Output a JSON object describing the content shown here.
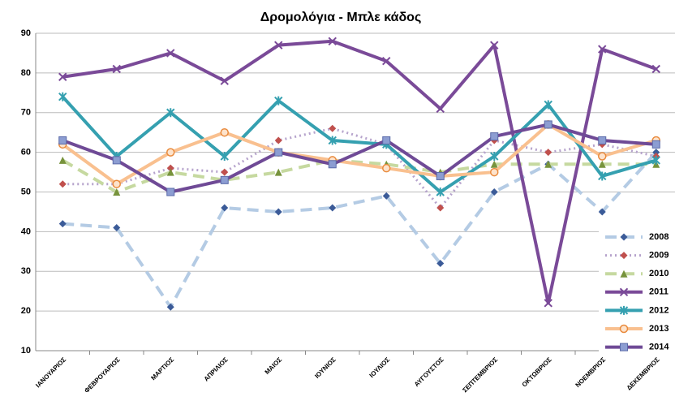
{
  "chart_data": {
    "type": "line",
    "title": "Δρομολόγια - Μπλε κάδος",
    "categories": [
      "ΙΑΝΟΥΑΡΙΟΣ",
      "ΦΕΒΡΟΥΑΡΙΟΣ",
      "ΜΑΡΤΙΟΣ",
      "ΑΠΡΙΛΙΟΣ",
      "ΜΑΙΟΣ",
      "ΙΟΥΝΙΟΣ",
      "ΙΟΥΛΙΟΣ",
      "ΑΥΓΟΥΣΤΟΣ",
      "ΣΕΠΤΕΜΒΡΙΟΣ",
      "ΟΚΤΩΒΡΙΟΣ",
      "ΝΟΕΜΒΡΙΟΣ",
      "ΔΕΚΕΜΒΡΙΟΣ"
    ],
    "series": [
      {
        "name": "2008",
        "color": "#b4cbe4",
        "marker_color": "#3b5b98",
        "marker": "diamond",
        "line_style": "dashed",
        "values": [
          42,
          41,
          21,
          46,
          45,
          46,
          49,
          32,
          50,
          57,
          45,
          60
        ]
      },
      {
        "name": "2009",
        "color": "#b6a3cc",
        "marker_color": "#c0504d",
        "marker": "diamond",
        "line_style": "dotted",
        "values": [
          52,
          52,
          56,
          55,
          63,
          66,
          62,
          46,
          63,
          60,
          62,
          59
        ]
      },
      {
        "name": "2010",
        "color": "#c6d9a0",
        "marker_color": "#77933c",
        "marker": "triangle",
        "line_style": "dashed",
        "values": [
          58,
          50,
          55,
          53,
          55,
          58,
          57,
          55,
          57,
          57,
          57,
          57
        ]
      },
      {
        "name": "2011",
        "color": "#7a4a98",
        "marker_color": "#7a4a98",
        "marker": "x",
        "line_style": "solid",
        "values": [
          79,
          81,
          85,
          78,
          87,
          88,
          83,
          71,
          87,
          22,
          86,
          81
        ]
      },
      {
        "name": "2012",
        "color": "#35a0b0",
        "marker_color": "#35a0b0",
        "marker": "star",
        "line_style": "solid",
        "values": [
          74,
          59,
          70,
          59,
          73,
          63,
          62,
          50,
          59,
          72,
          54,
          58
        ]
      },
      {
        "name": "2013",
        "color": "#f9c08f",
        "marker_color": "#e98a3c",
        "marker": "circle",
        "line_style": "solid",
        "values": [
          62,
          52,
          60,
          65,
          60,
          58,
          56,
          54,
          55,
          67,
          59,
          63
        ]
      },
      {
        "name": "2014",
        "color": "#6f4a96",
        "marker_color": "#8c9dd2",
        "marker": "square",
        "line_style": "solid",
        "values": [
          63,
          58,
          50,
          53,
          60,
          57,
          63,
          54,
          64,
          67,
          63,
          62
        ]
      }
    ],
    "ylim": [
      10,
      90
    ],
    "yticks": [
      10,
      20,
      30,
      40,
      50,
      60,
      70,
      80,
      90
    ],
    "grid": true,
    "legend": "right"
  }
}
